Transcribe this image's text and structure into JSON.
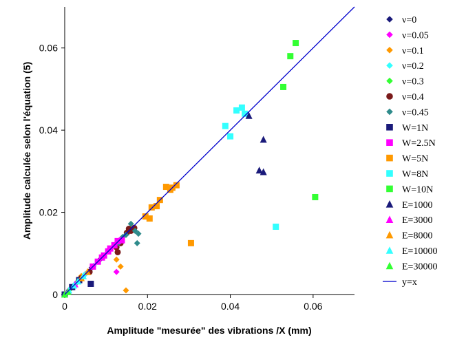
{
  "chart_data": {
    "type": "scatter",
    "xlabel": "Amplitude \"mesurée\" des vibrations /X (mm)",
    "ylabel": "Amplitude calculée selon l'équation (5)",
    "xlim": [
      0,
      0.07
    ],
    "ylim": [
      0,
      0.07
    ],
    "x_ticks": [
      "0",
      "0.02",
      "0.04",
      "0.06"
    ],
    "y_ticks": [
      "0",
      "0.02",
      "0.04",
      "0.06"
    ],
    "grid": false,
    "legend_position": "right",
    "series": [
      {
        "name": "ν=0",
        "marker": "diamond",
        "color": "#1a1a7a",
        "points": [
          [
            0,
            0
          ],
          [
            0.001,
            0.001
          ],
          [
            0.002,
            0.002
          ],
          [
            0.003,
            0.003
          ],
          [
            0.004,
            0.004
          ],
          [
            0.005,
            0.005
          ],
          [
            0.0065,
            0.0065
          ],
          [
            0.0085,
            0.0085
          ],
          [
            0.011,
            0.011
          ]
        ]
      },
      {
        "name": "ν=0.05",
        "marker": "diamond",
        "color": "#ff00ff",
        "points": [
          [
            0,
            0
          ],
          [
            0.0015,
            0.0015
          ],
          [
            0.003,
            0.003
          ],
          [
            0.005,
            0.005
          ],
          [
            0.007,
            0.007
          ],
          [
            0.009,
            0.009
          ],
          [
            0.0105,
            0.0105
          ],
          [
            0.0125,
            0.0125
          ],
          [
            0.0125,
            0.0055
          ]
        ]
      },
      {
        "name": "ν=0.1",
        "marker": "diamond",
        "color": "#ff9900",
        "points": [
          [
            0,
            0
          ],
          [
            0.004,
            0.0045
          ],
          [
            0.0125,
            0.0085
          ],
          [
            0.0135,
            0.0068
          ],
          [
            0.0148,
            0.001
          ]
        ]
      },
      {
        "name": "ν=0.2",
        "marker": "diamond",
        "color": "#33ffff",
        "points": [
          [
            0,
            0
          ],
          [
            0.002,
            0.002
          ],
          [
            0.0035,
            0.0035
          ],
          [
            0.005,
            0.005
          ],
          [
            0.007,
            0.007
          ]
        ]
      },
      {
        "name": "ν=0.3",
        "marker": "diamond",
        "color": "#33ff33",
        "points": [
          [
            0,
            0
          ],
          [
            0.0015,
            0.0015
          ],
          [
            0.003,
            0.003
          ]
        ]
      },
      {
        "name": "ν=0.4",
        "marker": "circle",
        "color": "#7a1a1a",
        "points": [
          [
            0.0125,
            0.0115
          ],
          [
            0.0135,
            0.0125
          ],
          [
            0.015,
            0.015
          ],
          [
            0.0155,
            0.016
          ],
          [
            0.016,
            0.0155
          ],
          [
            0.0168,
            0.0162
          ],
          [
            0.0128,
            0.0103
          ],
          [
            0.006,
            0.0055
          ],
          [
            0.004,
            0.004
          ]
        ]
      },
      {
        "name": "ν=0.45",
        "marker": "diamond",
        "color": "#2e8b8b",
        "points": [
          [
            0.011,
            0.011
          ],
          [
            0.013,
            0.0125
          ],
          [
            0.014,
            0.014
          ],
          [
            0.0148,
            0.0145
          ],
          [
            0.016,
            0.0172
          ],
          [
            0.017,
            0.0155
          ],
          [
            0.0178,
            0.0148
          ],
          [
            0.0175,
            0.0125
          ]
        ]
      },
      {
        "name": "W=1N",
        "marker": "square",
        "color": "#1a1a7a",
        "points": [
          [
            0,
            0
          ],
          [
            0.0018,
            0.0018
          ],
          [
            0.0035,
            0.0035
          ],
          [
            0.0063,
            0.0026
          ]
        ]
      },
      {
        "name": "W=2.5N",
        "marker": "square",
        "color": "#ff00ff",
        "points": [
          [
            0.0068,
            0.0068
          ],
          [
            0.008,
            0.008
          ],
          [
            0.009,
            0.009
          ],
          [
            0.0095,
            0.0095
          ],
          [
            0.0105,
            0.0105
          ],
          [
            0.011,
            0.0112
          ],
          [
            0.012,
            0.012
          ],
          [
            0.0128,
            0.013
          ],
          [
            0.0138,
            0.0132
          ]
        ]
      },
      {
        "name": "W=5N",
        "marker": "square",
        "color": "#ff9900",
        "points": [
          [
            0.0195,
            0.019
          ],
          [
            0.0205,
            0.0185
          ],
          [
            0.021,
            0.0212
          ],
          [
            0.0222,
            0.0215
          ],
          [
            0.023,
            0.023
          ],
          [
            0.0245,
            0.0262
          ],
          [
            0.0255,
            0.0255
          ],
          [
            0.026,
            0.026
          ],
          [
            0.027,
            0.0266
          ],
          [
            0.0305,
            0.0125
          ]
        ]
      },
      {
        "name": "W=8N",
        "marker": "square",
        "color": "#33ffff",
        "points": [
          [
            0.0388,
            0.041
          ],
          [
            0.04,
            0.0385
          ],
          [
            0.0415,
            0.0448
          ],
          [
            0.0428,
            0.0455
          ],
          [
            0.0435,
            0.044
          ],
          [
            0.051,
            0.0165
          ]
        ]
      },
      {
        "name": "W=10N",
        "marker": "square",
        "color": "#33ff33",
        "points": [
          [
            0.0528,
            0.0505
          ],
          [
            0.0545,
            0.058
          ],
          [
            0.0558,
            0.0612
          ],
          [
            0.0605,
            0.0237
          ]
        ]
      },
      {
        "name": "E=1000",
        "marker": "triangle",
        "color": "#1a1a7a",
        "points": [
          [
            0.0445,
            0.0435
          ],
          [
            0.047,
            0.0302
          ],
          [
            0.048,
            0.0298
          ],
          [
            0.048,
            0.0377
          ]
        ]
      },
      {
        "name": "E=3000",
        "marker": "triangle",
        "color": "#ff00ff",
        "points": [
          [
            0.0008,
            0.0008
          ],
          [
            0.0025,
            0.0025
          ]
        ]
      },
      {
        "name": "E=8000",
        "marker": "triangle",
        "color": "#ff9900",
        "points": [
          [
            0.004,
            0.004
          ],
          [
            0.0055,
            0.0055
          ]
        ]
      },
      {
        "name": "E=10000",
        "marker": "triangle",
        "color": "#33ffff",
        "points": [
          [
            0.001,
            0.001
          ],
          [
            0.0022,
            0.0022
          ],
          [
            0.0032,
            0.0032
          ],
          [
            0.0045,
            0.0045
          ]
        ]
      },
      {
        "name": "E=30000",
        "marker": "triangle",
        "color": "#33ff33",
        "points": [
          [
            0,
            0
          ],
          [
            0.0008,
            0.0006
          ]
        ]
      }
    ],
    "reference_line": {
      "name": "y=x",
      "color": "#0000cc",
      "points": [
        [
          0,
          0
        ],
        [
          0.07,
          0.07
        ]
      ]
    }
  }
}
